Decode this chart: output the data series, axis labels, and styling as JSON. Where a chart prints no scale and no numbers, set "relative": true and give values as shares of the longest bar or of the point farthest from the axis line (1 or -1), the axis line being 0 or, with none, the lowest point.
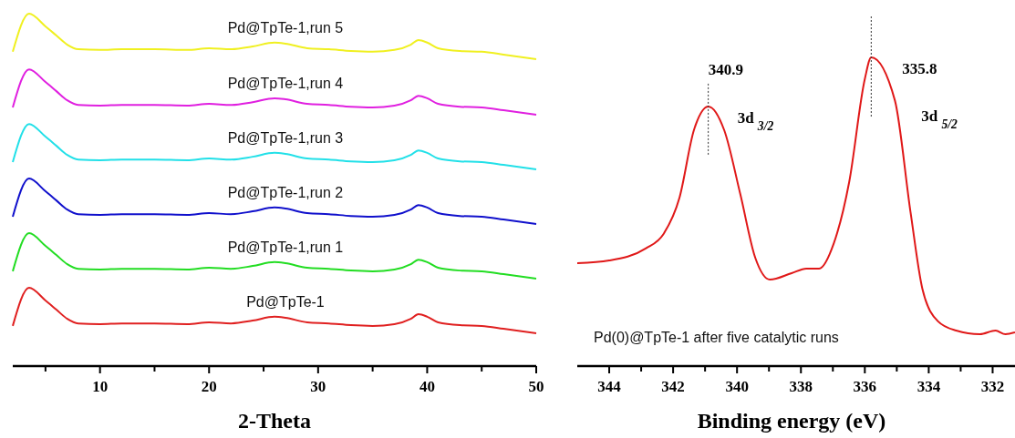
{
  "chart_data": [
    {
      "type": "line",
      "xlabel": "2-Theta",
      "relative": true,
      "xlim": [
        2,
        50
      ],
      "xticks": [
        {
          "value": 5,
          "label": null
        },
        10,
        {
          "value": 15,
          "label": null
        },
        20,
        {
          "value": 25,
          "label": null
        },
        30,
        {
          "value": 35,
          "label": null
        },
        40,
        {
          "value": 45,
          "label": null
        },
        50
      ],
      "tick_labels": "x",
      "grid": false,
      "legend": false,
      "marker": "none",
      "line_style": "solid",
      "x": [
        2,
        3.5,
        5,
        6,
        7,
        8,
        10,
        12,
        15,
        18,
        20,
        22,
        24,
        26,
        27,
        29,
        31,
        33,
        35,
        37,
        38.5,
        39.2,
        40,
        41,
        43,
        45,
        47,
        50
      ],
      "series": [
        {
          "name": "Pd@TpTe-1",
          "color": "#e02020",
          "values": [
            0.114,
            0.222,
            0.186,
            0.16,
            0.134,
            0.121,
            0.119,
            0.121,
            0.121,
            0.119,
            0.124,
            0.121,
            0.129,
            0.14,
            0.137,
            0.124,
            0.121,
            0.116,
            0.114,
            0.119,
            0.134,
            0.147,
            0.14,
            0.124,
            0.116,
            0.114,
            0.106,
            0.093
          ]
        },
        {
          "name": "Pd@TpTe-1,run 1",
          "color": "#22dd22",
          "values": [
            0.269,
            0.377,
            0.341,
            0.315,
            0.289,
            0.276,
            0.274,
            0.276,
            0.276,
            0.274,
            0.279,
            0.276,
            0.284,
            0.295,
            0.292,
            0.279,
            0.276,
            0.271,
            0.269,
            0.274,
            0.289,
            0.302,
            0.295,
            0.279,
            0.271,
            0.269,
            0.261,
            0.248
          ]
        },
        {
          "name": "Pd@TpTe-1,run 2",
          "color": "#1010cc",
          "values": [
            0.424,
            0.532,
            0.496,
            0.47,
            0.444,
            0.431,
            0.429,
            0.431,
            0.431,
            0.429,
            0.434,
            0.431,
            0.439,
            0.45,
            0.447,
            0.434,
            0.431,
            0.426,
            0.424,
            0.429,
            0.444,
            0.457,
            0.45,
            0.434,
            0.426,
            0.424,
            0.416,
            0.403
          ]
        },
        {
          "name": "Pd@TpTe-1,run 3",
          "color": "#22e0e8",
          "values": [
            0.579,
            0.687,
            0.651,
            0.625,
            0.599,
            0.586,
            0.584,
            0.586,
            0.586,
            0.584,
            0.589,
            0.586,
            0.594,
            0.605,
            0.602,
            0.589,
            0.586,
            0.581,
            0.579,
            0.584,
            0.599,
            0.612,
            0.605,
            0.589,
            0.581,
            0.579,
            0.571,
            0.558
          ]
        },
        {
          "name": "Pd@TpTe-1,run 4",
          "color": "#e020e0",
          "values": [
            0.734,
            0.842,
            0.806,
            0.78,
            0.754,
            0.741,
            0.739,
            0.741,
            0.741,
            0.739,
            0.744,
            0.741,
            0.749,
            0.76,
            0.757,
            0.744,
            0.741,
            0.736,
            0.734,
            0.739,
            0.754,
            0.767,
            0.76,
            0.744,
            0.736,
            0.734,
            0.726,
            0.713
          ]
        },
        {
          "name": "Pd@TpTe-1,run 5",
          "color": "#f0f020",
          "values": [
            0.892,
            1.0,
            0.964,
            0.938,
            0.912,
            0.899,
            0.897,
            0.899,
            0.899,
            0.897,
            0.902,
            0.899,
            0.907,
            0.918,
            0.915,
            0.902,
            0.899,
            0.894,
            0.892,
            0.897,
            0.912,
            0.925,
            0.918,
            0.902,
            0.894,
            0.892,
            0.884,
            0.871
          ]
        }
      ]
    },
    {
      "type": "line",
      "xlabel": "Binding energy (eV)",
      "relative": true,
      "xlim": [
        345,
        331.3
      ],
      "xticks": [
        344,
        {
          "value": 343,
          "label": null
        },
        342,
        {
          "value": 341,
          "label": null
        },
        340,
        {
          "value": 339,
          "label": null
        },
        338,
        {
          "value": 337,
          "label": null
        },
        336,
        {
          "value": 335,
          "label": null
        },
        334,
        {
          "value": 333,
          "label": null
        },
        332
      ],
      "tick_labels": "x",
      "grid": false,
      "legend": false,
      "marker": "none",
      "line_style": "solid",
      "x": [
        345.0,
        344,
        342.86,
        342.3,
        341.8,
        341.35,
        340.9,
        340.4,
        339.9,
        339.43,
        338.97,
        338.29,
        337.83,
        337.43,
        336.97,
        336.49,
        336.0,
        335.8,
        335.06,
        334.57,
        334.2,
        333.71,
        333.14,
        332.4,
        331.91,
        331.6,
        331.3
      ],
      "series": [
        {
          "color": "#e01818",
          "values": [
            0.333,
            0.342,
            0.381,
            0.428,
            0.546,
            0.764,
            0.841,
            0.764,
            0.558,
            0.351,
            0.28,
            0.301,
            0.316,
            0.316,
            0.398,
            0.596,
            0.93,
            1.0,
            0.861,
            0.499,
            0.251,
            0.145,
            0.115,
            0.103,
            0.115,
            0.103,
            0.109
          ]
        }
      ],
      "ref_lines": [
        {
          "axis": "x",
          "value": 340.9,
          "label": "340.9",
          "color": "#333333",
          "line_style": "dotted"
        },
        {
          "axis": "x",
          "value": 335.8,
          "label": "335.8",
          "color": "#333333",
          "line_style": "dotted"
        }
      ],
      "annotations": [
        "3d $_{3/2}$",
        "3d $_{5/2}$",
        "Pd(0)@TpTe-1 after five catalytic runs"
      ]
    }
  ]
}
